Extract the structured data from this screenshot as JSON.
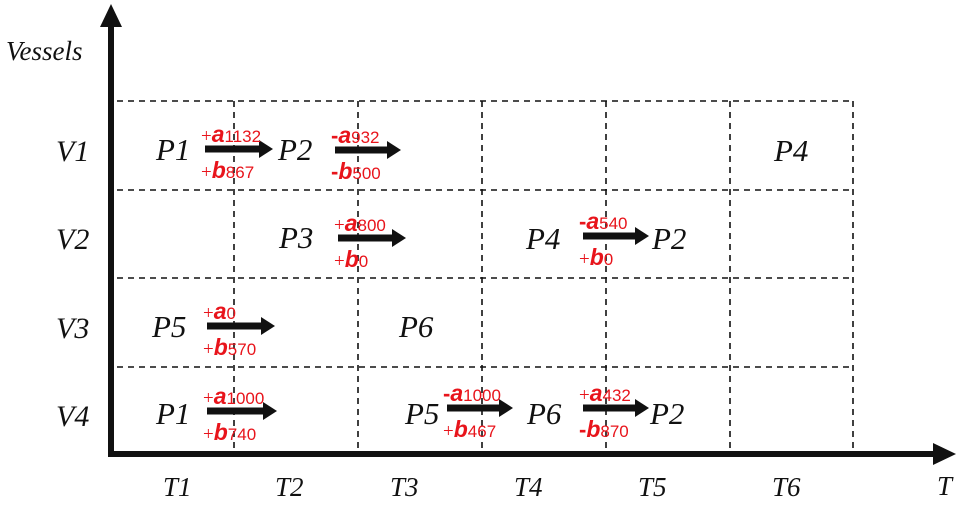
{
  "axes": {
    "y_title": "Vessels",
    "x_title": "T"
  },
  "rows": [
    "V1",
    "V2",
    "V3",
    "V4"
  ],
  "columns": [
    "T1",
    "T2",
    "T3",
    "T4",
    "T5",
    "T6"
  ],
  "processes": {
    "v1_p1": "P1",
    "v1_p2": "P2",
    "v1_p4": "P4",
    "v2_p3": "P3",
    "v2_p4": "P4",
    "v2_p2": "P2",
    "v3_p5": "P5",
    "v3_p6": "P6",
    "v4_p1": "P1",
    "v4_p5": "P5",
    "v4_p6": "P6",
    "v4_p2": "P2"
  },
  "transfers": {
    "v1_t1": {
      "top_sign": "+",
      "top_var": "a",
      "top_value": "1132",
      "bottom_sign": "+",
      "bottom_var": "b",
      "bottom_value": "867"
    },
    "v1_t2": {
      "top_sign": "-",
      "top_var": "a",
      "top_value": "932",
      "bottom_sign": "-",
      "bottom_var": "b",
      "bottom_value": "500"
    },
    "v2_t2": {
      "top_sign": "+",
      "top_var": "a",
      "top_value": "800",
      "bottom_sign": "+",
      "bottom_var": "b",
      "bottom_value": "0"
    },
    "v2_t4": {
      "top_sign": "-",
      "top_var": "a",
      "top_value": "540",
      "bottom_sign": "+",
      "bottom_var": "b",
      "bottom_value": "0"
    },
    "v3_t1": {
      "top_sign": "+",
      "top_var": "a",
      "top_value": "0",
      "bottom_sign": "+",
      "bottom_var": "b",
      "bottom_value": "570"
    },
    "v4_t1": {
      "top_sign": "+",
      "top_var": "a",
      "top_value": "1000",
      "bottom_sign": "+",
      "bottom_var": "b",
      "bottom_value": "740"
    },
    "v4_t3": {
      "top_sign": "-",
      "top_var": "a",
      "top_value": "1000",
      "bottom_sign": "+",
      "bottom_var": "b",
      "bottom_value": "467"
    },
    "v4_t4": {
      "top_sign": "+",
      "top_var": "a",
      "top_value": "432",
      "bottom_sign": "-",
      "bottom_var": "b",
      "bottom_value": "870"
    }
  },
  "colors": {
    "annotation": "#e8141b",
    "text": "#111111",
    "grid": "#111111"
  }
}
